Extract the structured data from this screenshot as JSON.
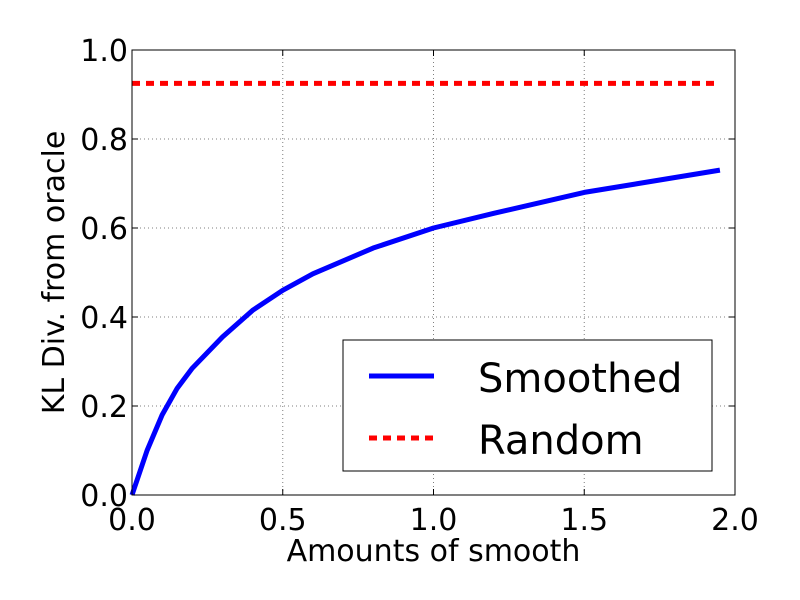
{
  "chart_data": {
    "type": "line",
    "title": "",
    "xlabel": "Amounts of smooth",
    "ylabel": "KL Div. from oracle",
    "xlim": [
      0.0,
      2.0
    ],
    "ylim": [
      0.0,
      1.0
    ],
    "grid": true,
    "legend_position": "bottom-right",
    "x_ticks": [
      0.0,
      0.5,
      1.0,
      1.5,
      2.0
    ],
    "y_ticks": [
      0.0,
      0.2,
      0.4,
      0.6,
      0.8,
      1.0
    ],
    "x_tick_labels": [
      "0.0",
      "0.5",
      "1.0",
      "1.5",
      "2.0"
    ],
    "y_tick_labels": [
      "0.0",
      "0.2",
      "0.4",
      "0.6",
      "0.8",
      "1.0"
    ],
    "series": [
      {
        "name": "Smoothed",
        "style": "solid",
        "color": "#0000ff",
        "x": [
          0.0,
          0.05,
          0.1,
          0.15,
          0.2,
          0.3,
          0.4,
          0.5,
          0.6,
          0.8,
          1.0,
          1.2,
          1.5,
          1.95
        ],
        "y": [
          0.0,
          0.1,
          0.18,
          0.24,
          0.285,
          0.355,
          0.415,
          0.46,
          0.497,
          0.555,
          0.6,
          0.633,
          0.68,
          0.73
        ]
      },
      {
        "name": "Random",
        "style": "dashed",
        "color": "#ff0000",
        "x": [
          0.0,
          1.95
        ],
        "y": [
          0.925,
          0.925
        ]
      }
    ]
  }
}
